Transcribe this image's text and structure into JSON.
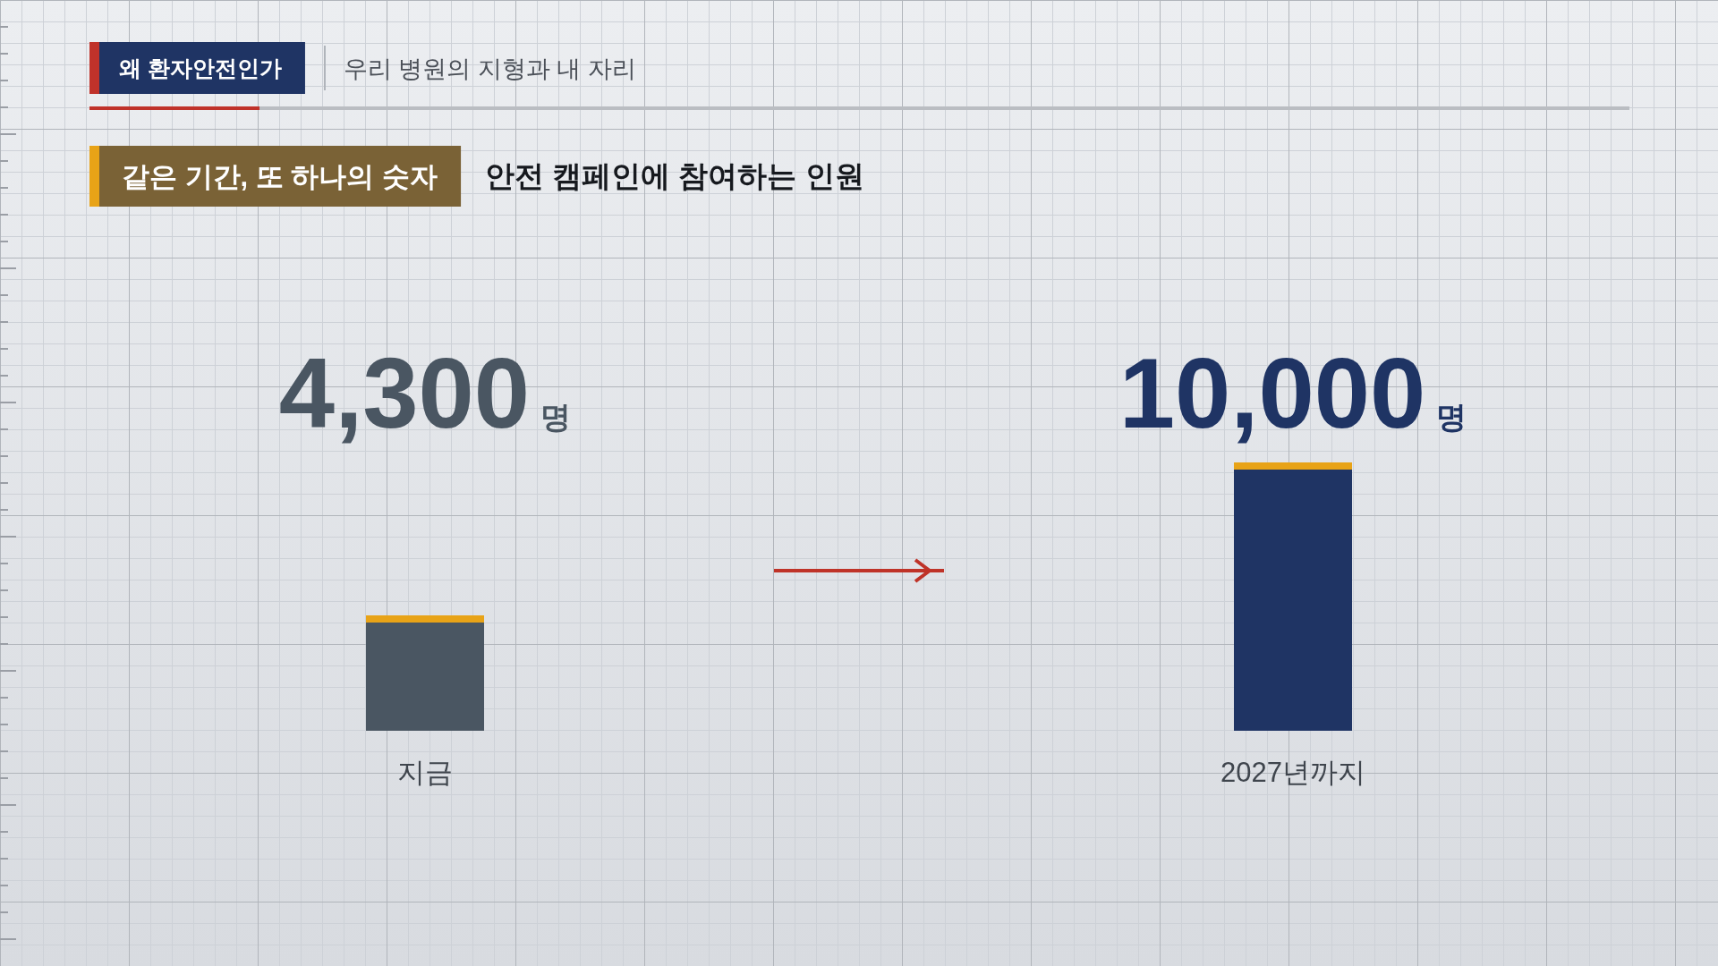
{
  "chart_data": {
    "type": "bar",
    "title": "안전 캠페인에 참여하는 인원",
    "subtitle": "우리 병원의 지형과 내 자리",
    "annotations": [
      "왜 환자안전인가",
      "같은 기간, 또 하나의 숫자"
    ],
    "categories": [
      "지금",
      "2027년까지"
    ],
    "values": [
      4300,
      10000
    ],
    "colors": [
      "#4a5662",
      "#1f3464"
    ],
    "value_labels": [
      "4,300명",
      "10,000명"
    ]
  }
}
